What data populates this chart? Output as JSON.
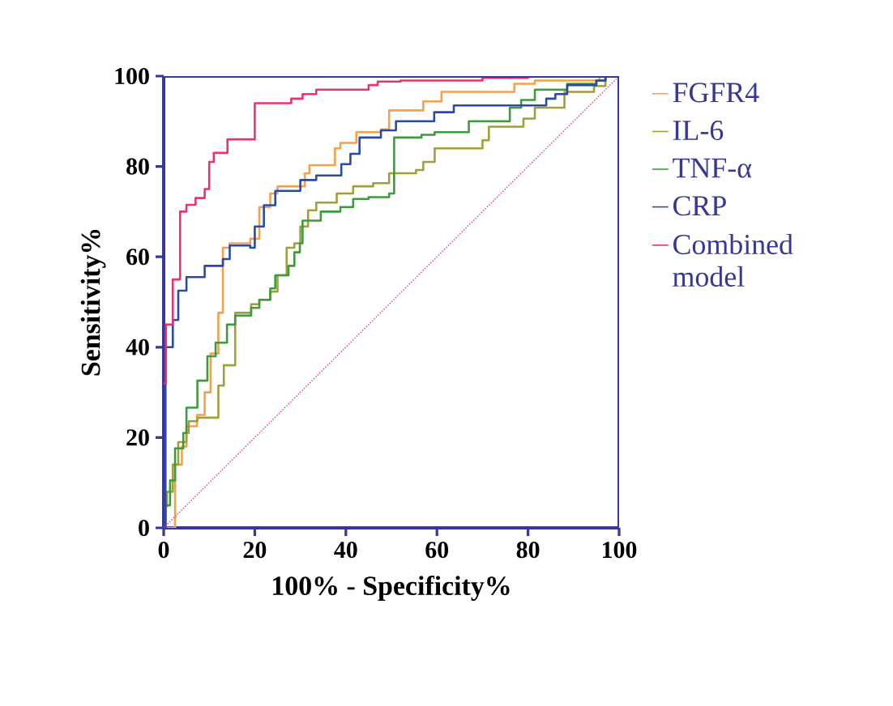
{
  "chart_data": {
    "type": "step",
    "xlabel": "100% - Specificity%",
    "ylabel": "Sensitivity%",
    "xlim": [
      0,
      100
    ],
    "ylim": [
      0,
      100
    ],
    "xticks": [
      0,
      20,
      40,
      60,
      80,
      100
    ],
    "yticks": [
      0,
      20,
      40,
      60,
      80,
      100
    ],
    "grid": false,
    "legend": "right",
    "marker": "none",
    "series": [
      {
        "name": "FGFR4",
        "color": "#f5a04a",
        "x": [
          0,
          2.5,
          4,
          5,
          7.3,
          9,
          10.3,
          12,
          13,
          14.5,
          19,
          21,
          23.4,
          25,
          31,
          32,
          37.6,
          38.8,
          42.3,
          47.7,
          49.5,
          57,
          61,
          77,
          81.5,
          95.7,
          100
        ],
        "values": [
          0,
          14,
          18,
          22.5,
          25,
          30,
          38.6,
          47.6,
          62,
          63,
          64,
          71,
          74,
          75.6,
          78.5,
          80.3,
          84,
          85.2,
          87.6,
          88.2,
          92.4,
          94.4,
          96.5,
          98.3,
          99,
          100,
          100
        ]
      },
      {
        "name": "IL-6",
        "color": "#a0a038",
        "x": [
          0,
          0.4,
          0.7,
          2,
          3.2,
          5,
          5.5,
          7.4,
          12,
          13.2,
          15.7,
          19.2,
          21,
          23.4,
          25,
          27,
          28.7,
          30,
          31.7,
          33.5,
          38,
          41.6,
          46,
          49.5,
          55.4,
          57,
          59.5,
          70,
          71.4,
          79,
          81.5,
          88,
          94.5,
          97,
          100
        ],
        "values": [
          0,
          4.7,
          8,
          14,
          19,
          21,
          23.6,
          24.4,
          31.5,
          36,
          47.6,
          49.5,
          50.5,
          52.3,
          55.9,
          62,
          63,
          66.7,
          70.3,
          72,
          74,
          75.6,
          76.3,
          78.5,
          79.2,
          81,
          84,
          85.8,
          88.8,
          90.6,
          93,
          96.5,
          97.8,
          100,
          100
        ]
      },
      {
        "name": "TNF-α",
        "color": "#3d9a3d",
        "x": [
          0,
          0.4,
          1.4,
          2.5,
          4.3,
          5,
          7.4,
          9.6,
          11.4,
          13.9,
          15.7,
          19.2,
          21,
          23.4,
          24.5,
          27.4,
          28.7,
          29.9,
          30.5,
          34.5,
          38.8,
          41.6,
          45,
          49.5,
          50.6,
          56.6,
          59.5,
          67,
          76,
          78.5,
          81.5,
          88.6,
          95,
          97
        ],
        "values": [
          0,
          5,
          10.5,
          17.6,
          21,
          26.6,
          32.6,
          38,
          41,
          45,
          47,
          48.7,
          50.5,
          53,
          55.9,
          58,
          61,
          63,
          68,
          70,
          71,
          72.8,
          73.2,
          74,
          86.4,
          87,
          87.6,
          90,
          93,
          94.7,
          97,
          98.3,
          99,
          100
        ]
      },
      {
        "name": "CRP",
        "color": "#2a4aa8",
        "x": [
          0,
          0.4,
          2,
          3.2,
          5,
          9,
          13,
          14.5,
          19,
          20,
          22,
          24.5,
          30,
          33.5,
          39,
          41,
          43,
          47.7,
          51,
          59.4,
          63.7,
          84,
          86,
          88.6,
          95,
          97,
          100
        ],
        "values": [
          0,
          40,
          46,
          52.5,
          55.5,
          58,
          59.5,
          62.5,
          62,
          66.7,
          71.4,
          74.6,
          77,
          78,
          80.5,
          82.8,
          86.4,
          88,
          90,
          92,
          93.5,
          95,
          96,
          98,
          99,
          100,
          100
        ]
      },
      {
        "name": "Combined model",
        "color": "#e8336f",
        "x": [
          0,
          0.5,
          2,
          3.6,
          5,
          7,
          9,
          10,
          11,
          14,
          20,
          28,
          30.5,
          33.5,
          45,
          47,
          52,
          70,
          80,
          100
        ],
        "values": [
          32,
          45,
          55,
          70,
          71.5,
          73,
          75,
          81,
          83,
          86,
          94,
          95,
          96,
          97,
          98,
          98.8,
          99,
          99.6,
          100,
          100
        ]
      },
      {
        "type": "line",
        "line_style": "dotted",
        "color": "#e8336f",
        "x": [
          0,
          100
        ],
        "values": [
          0,
          100
        ]
      }
    ]
  }
}
